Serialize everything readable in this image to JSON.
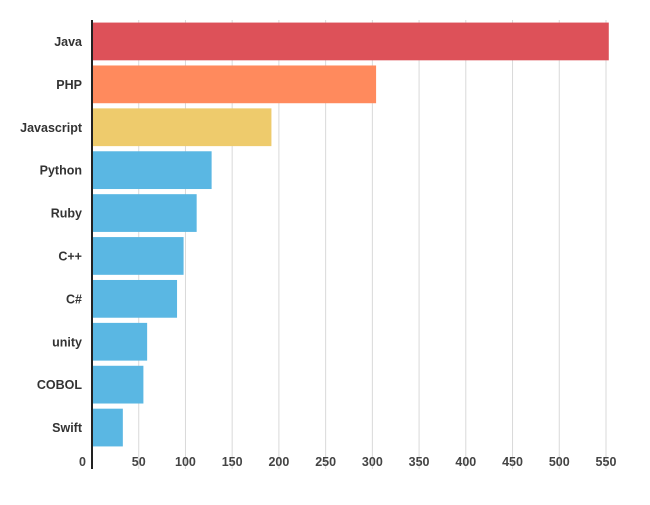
{
  "chart_data": {
    "type": "bar",
    "orientation": "horizontal",
    "title": "",
    "xlabel": "",
    "ylabel": "",
    "categories": [
      "Java",
      "PHP",
      "Javascript",
      "Python",
      "Ruby",
      "C++",
      "C#",
      "unity",
      "COBOL",
      "Swift"
    ],
    "values": [
      553,
      304,
      192,
      128,
      112,
      98,
      91,
      59,
      55,
      33
    ],
    "colors": [
      "#dd5159",
      "#ff8a5d",
      "#eecb6c",
      "#5ab7e3",
      "#5ab7e3",
      "#5ab7e3",
      "#5ab7e3",
      "#5ab7e3",
      "#5ab7e3",
      "#5ab7e3"
    ],
    "xlim": [
      0,
      565
    ],
    "xticks": [
      0,
      50,
      100,
      150,
      200,
      250,
      300,
      350,
      400,
      450,
      500,
      550
    ],
    "grid": true,
    "legend": "none"
  }
}
